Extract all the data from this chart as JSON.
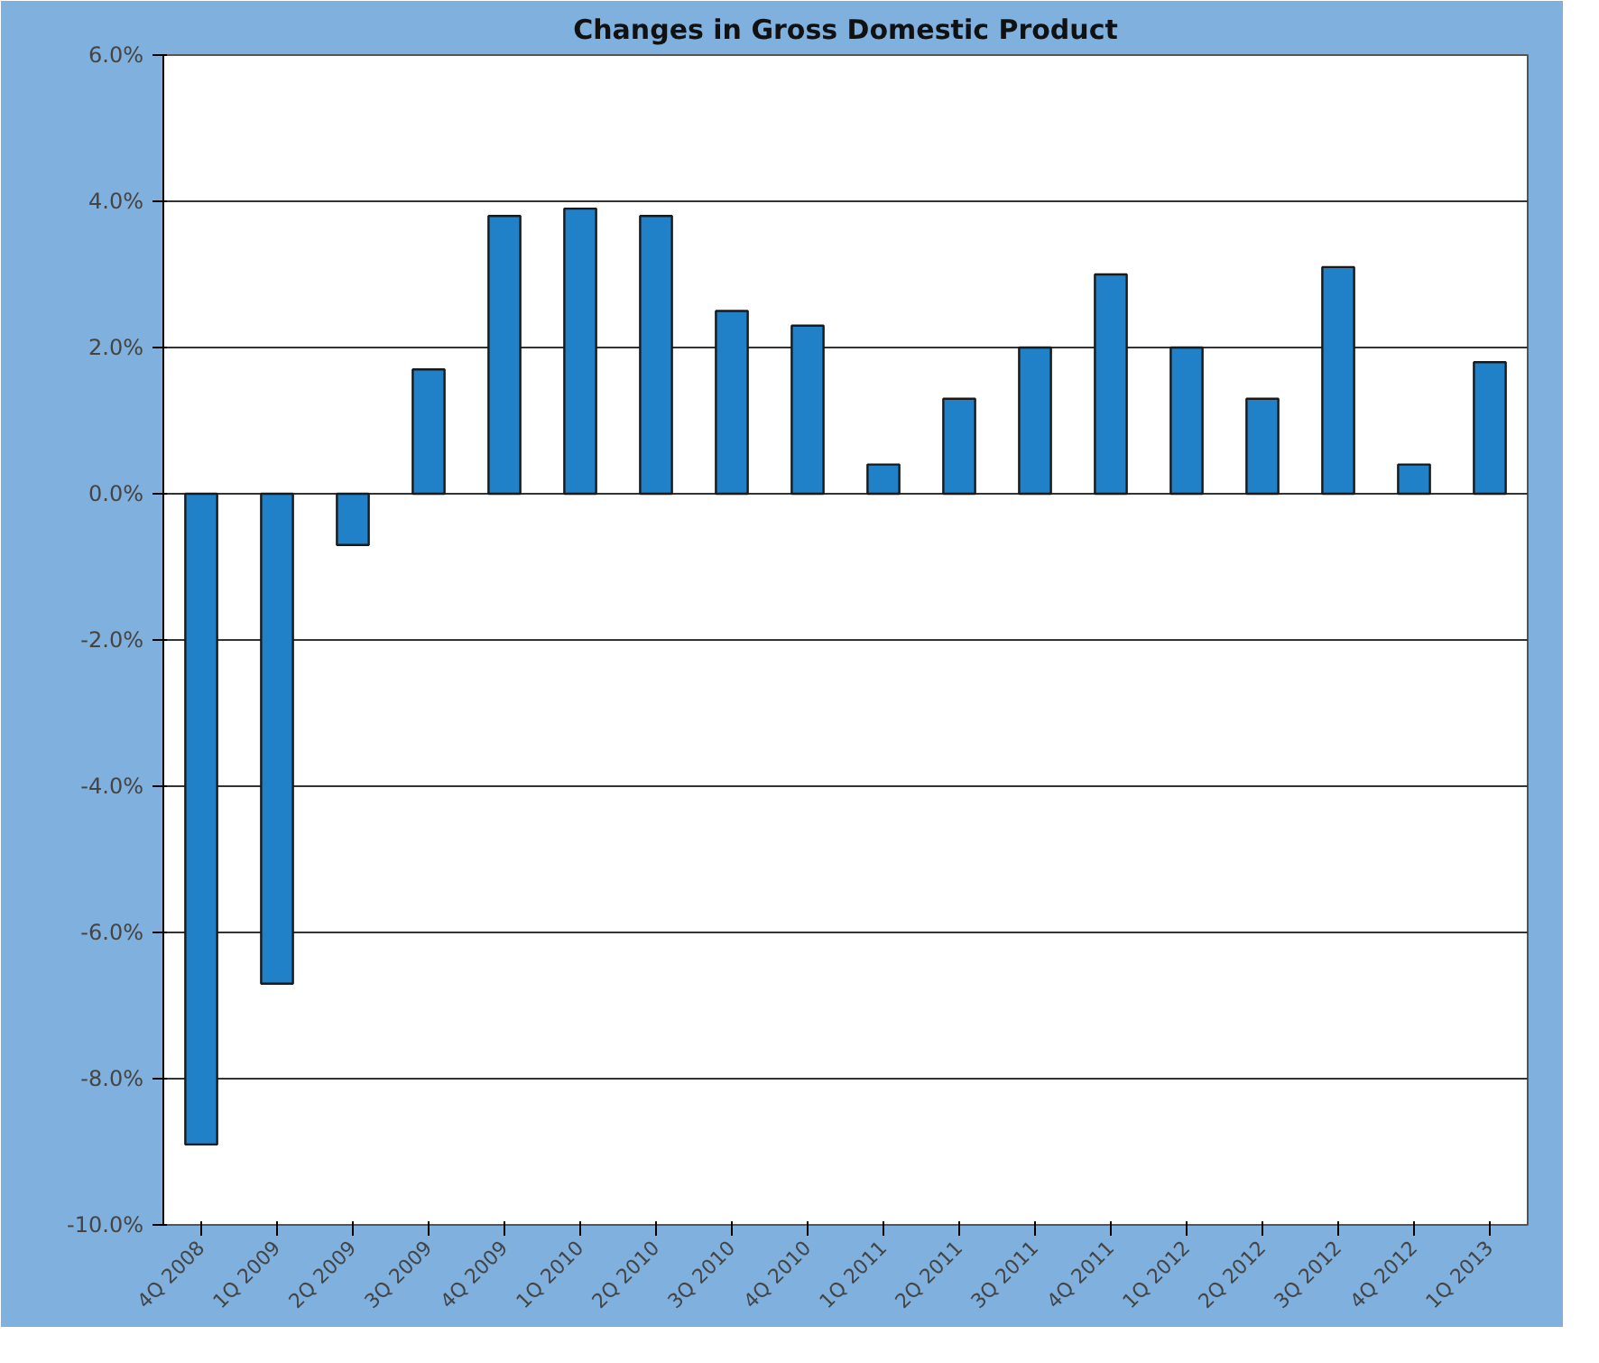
{
  "chart_data": {
    "type": "bar",
    "title": "Changes in Gross Domestic Product",
    "categories": [
      "4Q 2008",
      "1Q 2009",
      "2Q 2009",
      "3Q 2009",
      "4Q 2009",
      "1Q 2010",
      "2Q 2010",
      "3Q 2010",
      "4Q 2010",
      "1Q 2011",
      "2Q 2011",
      "3Q 2011",
      "4Q 2011",
      "1Q 2012",
      "2Q 2012",
      "3Q 2012",
      "4Q 2012",
      "1Q 2013"
    ],
    "values": [
      -8.9,
      -6.7,
      -0.7,
      1.7,
      3.8,
      3.9,
      3.8,
      2.5,
      2.3,
      0.4,
      1.3,
      2.0,
      3.0,
      2.0,
      1.3,
      3.1,
      0.4,
      1.8
    ],
    "color": "#2080c8",
    "ylim": [
      -10,
      6
    ],
    "yticks": [
      {
        "value": -10,
        "label": "-10.0%"
      },
      {
        "value": -8,
        "label": "-8.0%"
      },
      {
        "value": -6,
        "label": "-6.0%"
      },
      {
        "value": -4,
        "label": "-4.0%"
      },
      {
        "value": -2,
        "label": "-2.0%"
      },
      {
        "value": 0,
        "label": "0.0%"
      },
      {
        "value": 2,
        "label": "2.0%"
      },
      {
        "value": 4,
        "label": "4.0%"
      },
      {
        "value": 6,
        "label": "6.0%"
      }
    ],
    "grid": "y"
  }
}
